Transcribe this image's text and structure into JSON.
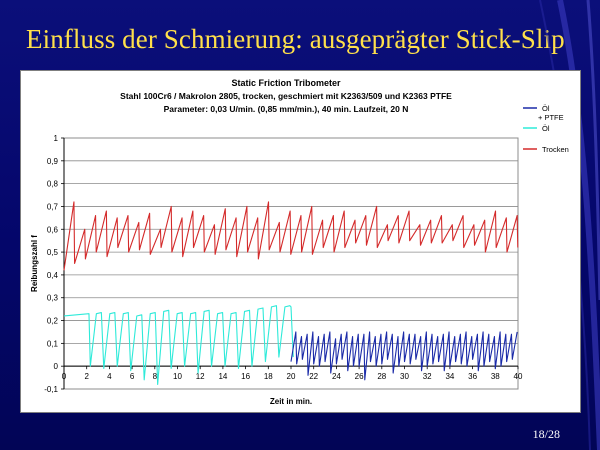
{
  "slide": {
    "title": "Einfluss der Schmierung: ausgeprägter Stick-Slip",
    "page_number": "18/28"
  },
  "colors": {
    "background": "#06086e",
    "title": "#ffe04a",
    "trocken": "#d42a2a",
    "oel": "#2eead9",
    "oel_ptfe": "#1a2aa8",
    "grid": "#8c8c8c"
  },
  "chart_data": {
    "type": "line",
    "title": [
      "Static Friction Tribometer",
      "Stahl 100Cr6 / Makrolon 2805, trocken, geschmiert mit K2363/509 und K2363 PTFE",
      "Parameter: 0,03 U/min. (0,85 mm/min.), 40 min. Laufzeit, 20 N"
    ],
    "xlabel": "Zeit in min.",
    "ylabel": "Reibungszahl f",
    "xlim": [
      0,
      40
    ],
    "ylim": [
      -0.1,
      1
    ],
    "x_ticks": [
      "0",
      "2",
      "4",
      "6",
      "8",
      "10",
      "12",
      "14",
      "16",
      "18",
      "20",
      "22",
      "24",
      "26",
      "28",
      "30",
      "32",
      "34",
      "36",
      "38",
      "40"
    ],
    "y_ticks": [
      "-0,1",
      "0",
      "0,1",
      "0,2",
      "0,3",
      "0,4",
      "0,5",
      "0,6",
      "0,7",
      "0,8",
      "0,9",
      "1"
    ],
    "grid": true,
    "legend_position": "right",
    "legend": [
      {
        "name": "Öl\n+ PTFE",
        "series": "oel_ptfe"
      },
      {
        "name": "Öl",
        "series": "oel"
      },
      {
        "name": "Trocken",
        "series": "trocken"
      }
    ],
    "series": [
      {
        "key": "trocken",
        "name": "Trocken",
        "description": "sawtooth: rises to peak then drops",
        "x_range": [
          0,
          40
        ],
        "cycles": 42,
        "start": 0.42,
        "peaks": [
          0.72,
          0.6,
          0.66,
          0.68,
          0.65,
          0.66,
          0.63,
          0.67,
          0.6,
          0.7,
          0.65,
          0.68,
          0.66,
          0.62,
          0.69,
          0.65,
          0.7,
          0.65,
          0.72,
          0.63,
          0.68,
          0.66,
          0.7,
          0.64,
          0.66,
          0.68,
          0.64,
          0.66,
          0.7,
          0.62,
          0.66,
          0.68,
          0.62,
          0.64,
          0.66,
          0.62,
          0.66,
          0.62,
          0.64,
          0.68,
          0.65,
          0.66
        ],
        "valleys": [
          0.45,
          0.47,
          0.5,
          0.48,
          0.52,
          0.5,
          0.51,
          0.49,
          0.52,
          0.5,
          0.48,
          0.52,
          0.5,
          0.49,
          0.51,
          0.48,
          0.5,
          0.47,
          0.51,
          0.5,
          0.49,
          0.5,
          0.49,
          0.52,
          0.5,
          0.52,
          0.54,
          0.53,
          0.52,
          0.55,
          0.54,
          0.55,
          0.53,
          0.54,
          0.54,
          0.55,
          0.52,
          0.53,
          0.5,
          0.52,
          0.5,
          0.52
        ]
      },
      {
        "key": "oel",
        "name": "Öl",
        "description": "stick-slip cycles with deep drops",
        "x_range": [
          0,
          20
        ],
        "start": 0.2,
        "plateau": [
          [
            0,
            0.22
          ],
          [
            2.2,
            0.23
          ]
        ],
        "cycles": 15,
        "peaks": [
          0.23,
          0.23,
          0.23,
          0.22,
          0.23,
          0.24,
          0.23,
          0.23,
          0.24,
          0.23,
          0.23,
          0.24,
          0.25,
          0.26,
          0.26
        ],
        "valleys": [
          0.0,
          -0.01,
          0.0,
          -0.02,
          -0.06,
          -0.08,
          -0.01,
          0.0,
          -0.03,
          0.0,
          0.0,
          -0.01,
          0.0,
          0.02,
          0.04
        ],
        "end": [
          [
            20,
            0.26
          ],
          [
            20.2,
            0.04
          ]
        ]
      },
      {
        "key": "oel_ptfe",
        "name": "Öl + PTFE",
        "description": "fine sawtooth with occasional dips",
        "x_range": [
          20,
          40
        ],
        "cycles": 40,
        "peaks": [
          0.15,
          0.13,
          0.14,
          0.15,
          0.13,
          0.14,
          0.15,
          0.12,
          0.14,
          0.15,
          0.13,
          0.14,
          0.14,
          0.15,
          0.13,
          0.14,
          0.15,
          0.14,
          0.13,
          0.15,
          0.14,
          0.14,
          0.13,
          0.15,
          0.14,
          0.13,
          0.14,
          0.15,
          0.13,
          0.14,
          0.15,
          0.13,
          0.14,
          0.15,
          0.14,
          0.13,
          0.15,
          0.14,
          0.14,
          0.15
        ],
        "valleys": [
          0.02,
          0.01,
          0.03,
          -0.04,
          0.01,
          0.0,
          0.02,
          -0.03,
          0.01,
          0.03,
          -0.02,
          0.0,
          0.0,
          -0.06,
          0.02,
          0.0,
          0.01,
          0.03,
          -0.03,
          0.0,
          0.02,
          0.01,
          0.03,
          -0.02,
          0.0,
          0.01,
          0.02,
          -0.02,
          0.0,
          0.02,
          0.01,
          0.0,
          0.03,
          -0.02,
          0.0,
          0.02,
          -0.01,
          0.0,
          0.02,
          0.03
        ]
      }
    ]
  }
}
